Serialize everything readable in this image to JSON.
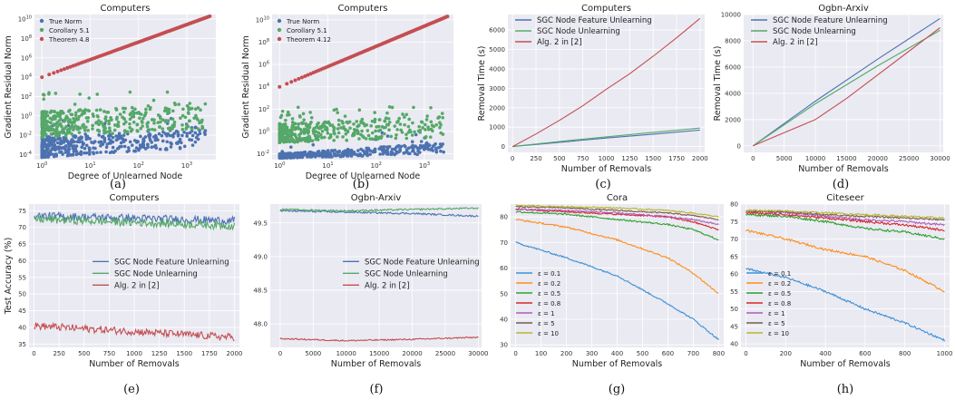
{
  "colors": {
    "blue": "#4c72b0",
    "green": "#55a868",
    "red": "#c44e52",
    "orange": "#ff8c1a",
    "tblue": "#3d8fd6",
    "tgreen": "#2ca02c",
    "tred": "#d62728",
    "purple": "#b05ab8",
    "brown": "#7a5a4a",
    "olive": "#b8b82c"
  },
  "chart_data": [
    {
      "id": "a",
      "type": "scatter",
      "title": "Computers",
      "caption": "(a)",
      "xlabel": "Degree of Unlearned Node",
      "ylabel": "Gradient Residual Norm",
      "xscale": "log",
      "yscale": "log",
      "xlim": [
        0.7,
        4000
      ],
      "ylim": [
        3e-05,
        30000000000
      ],
      "xticks": [
        {
          "v": 1,
          "b": "10",
          "e": "0"
        },
        {
          "v": 10,
          "b": "10",
          "e": "1"
        },
        {
          "v": 100,
          "b": "10",
          "e": "2"
        },
        {
          "v": 1000,
          "b": "10",
          "e": "3"
        }
      ],
      "yticks": [
        {
          "v": 0.0001,
          "b": "10",
          "e": "-4"
        },
        {
          "v": 0.01,
          "b": "10",
          "e": "-2"
        },
        {
          "v": 1,
          "b": "10",
          "e": "0"
        },
        {
          "v": 100,
          "b": "10",
          "e": "2"
        },
        {
          "v": 10000,
          "b": "10",
          "e": "4"
        },
        {
          "v": 1000000,
          "b": "10",
          "e": "6"
        },
        {
          "v": 100000000,
          "b": "10",
          "e": "8"
        },
        {
          "v": 10000000000,
          "b": "10",
          "e": "10"
        }
      ],
      "legend_pos": "top-left",
      "series": [
        {
          "name": "True Norm",
          "color": "blue",
          "low": [
            5e-05,
            0.005
          ],
          "high": [
            0.0006,
            0.1
          ],
          "upper": [
            0.004,
            1
          ]
        },
        {
          "name": "Corollary 5.1",
          "color": "green",
          "low": [
            0.006,
            3
          ],
          "high": [
            0.05,
            15
          ],
          "upper": [
            20,
            300
          ]
        },
        {
          "name": "Theorem 4.8",
          "color": "red",
          "line": [
            [
              1,
              10000
            ],
            [
              3000,
              20000000000
            ]
          ]
        }
      ]
    },
    {
      "id": "b",
      "type": "scatter",
      "title": "Computers",
      "caption": "(b)",
      "xlabel": "Degree of Unlearned Node",
      "ylabel": "Gradient Residual Norm",
      "xscale": "log",
      "yscale": "log",
      "xlim": [
        0.7,
        4000
      ],
      "ylim": [
        0.003,
        30000000000
      ],
      "xticks": [
        {
          "v": 1,
          "b": "10",
          "e": "0"
        },
        {
          "v": 10,
          "b": "10",
          "e": "1"
        },
        {
          "v": 100,
          "b": "10",
          "e": "2"
        },
        {
          "v": 1000,
          "b": "10",
          "e": "3"
        }
      ],
      "yticks": [
        {
          "v": 0.01,
          "b": "10",
          "e": "-2"
        },
        {
          "v": 1,
          "b": "10",
          "e": "0"
        },
        {
          "v": 100,
          "b": "10",
          "e": "2"
        },
        {
          "v": 10000,
          "b": "10",
          "e": "4"
        },
        {
          "v": 1000000,
          "b": "10",
          "e": "6"
        },
        {
          "v": 100000000,
          "b": "10",
          "e": "8"
        },
        {
          "v": 10000000000,
          "b": "10",
          "e": "10"
        }
      ],
      "legend_pos": "top-left",
      "series": [
        {
          "name": "True Norm",
          "color": "blue",
          "low": [
            0.004,
            0.01
          ],
          "high": [
            0.01,
            0.1
          ],
          "upper": [
            0.01,
            1
          ]
        },
        {
          "name": "Corollary 5.1",
          "color": "green",
          "low": [
            0.1,
            5
          ],
          "high": [
            0.3,
            30
          ],
          "upper": [
            5,
            200
          ]
        },
        {
          "name": "Theorem 4.12",
          "color": "red",
          "line": [
            [
              1,
              10000
            ],
            [
              3000,
              20000000000
            ]
          ]
        }
      ]
    },
    {
      "id": "c",
      "type": "line",
      "title": "Computers",
      "caption": "(c)",
      "xlabel": "Number of Removals",
      "ylabel": "Removal Time (s)",
      "xlim": [
        -50,
        2050
      ],
      "ylim": [
        -300,
        6800
      ],
      "xticks": [
        0,
        250,
        500,
        750,
        1000,
        1250,
        1500,
        1750,
        2000
      ],
      "yticks": [
        0,
        1000,
        2000,
        3000,
        4000,
        5000,
        6000
      ],
      "legend_pos": "top-left",
      "series": [
        {
          "name": "SGC Node Feature Unlearning",
          "color": "blue",
          "x": [
            0,
            500,
            1000,
            1500,
            2000
          ],
          "y": [
            0,
            220,
            440,
            640,
            850
          ]
        },
        {
          "name": "SGC Node Unlearning",
          "color": "green",
          "x": [
            0,
            500,
            1000,
            1500,
            2000
          ],
          "y": [
            0,
            260,
            500,
            730,
            950
          ]
        },
        {
          "name": "Alg. 2 in [2]",
          "color": "red",
          "x": [
            0,
            250,
            500,
            750,
            1000,
            1250,
            1500,
            1750,
            2000
          ],
          "y": [
            0,
            650,
            1350,
            2100,
            2950,
            3750,
            4650,
            5600,
            6600
          ]
        }
      ]
    },
    {
      "id": "d",
      "type": "line",
      "title": "Ogbn-Arxiv",
      "caption": "(d)",
      "xlabel": "Number of Removals",
      "ylabel": "Removal Time (s)",
      "xlim": [
        -1500,
        30500
      ],
      "ylim": [
        -500,
        10000
      ],
      "xticks": [
        0,
        5000,
        10000,
        15000,
        20000,
        25000,
        30000
      ],
      "yticks": [
        0,
        2000,
        4000,
        6000,
        8000,
        10000
      ],
      "legend_pos": "top-left",
      "series": [
        {
          "name": "SGC Node Feature Unlearning",
          "color": "blue",
          "x": [
            0,
            10000,
            20000,
            30000
          ],
          "y": [
            0,
            3400,
            6600,
            9700
          ]
        },
        {
          "name": "SGC Node Unlearning",
          "color": "green",
          "x": [
            0,
            10000,
            20000,
            30000
          ],
          "y": [
            0,
            3200,
            6100,
            8800
          ]
        },
        {
          "name": "Alg. 2 in [2]",
          "color": "red",
          "x": [
            0,
            5000,
            10000,
            15000,
            20000,
            25000,
            30000
          ],
          "y": [
            0,
            1000,
            2000,
            3600,
            5400,
            7200,
            9000
          ]
        }
      ]
    },
    {
      "id": "e",
      "type": "line",
      "title": "Computers",
      "caption": "(e)",
      "xlabel": "Number of Removals",
      "ylabel": "Test Accuracy (%)",
      "xlim": [
        -50,
        2050
      ],
      "ylim": [
        34,
        77
      ],
      "xticks": [
        0,
        250,
        500,
        750,
        1000,
        1250,
        1500,
        1750,
        2000
      ],
      "yticks": [
        35,
        40,
        45,
        50,
        55,
        60,
        65,
        70,
        75
      ],
      "legend_pos": "center-right",
      "series": [
        {
          "name": "SGC Node Feature Unlearning",
          "color": "blue",
          "x": [
            0,
            2000
          ],
          "y": [
            73.5,
            72
          ],
          "noise": 1.2
        },
        {
          "name": "SGC Node Unlearning",
          "color": "green",
          "x": [
            0,
            2000
          ],
          "y": [
            72.5,
            70.5
          ],
          "noise": 1.2
        },
        {
          "name": "Alg. 2 in [2]",
          "color": "red",
          "x": [
            0,
            2000
          ],
          "y": [
            40.5,
            37
          ],
          "noise": 1.1
        }
      ]
    },
    {
      "id": "f",
      "type": "line",
      "title": "Ogbn-Arxiv",
      "caption": "(f)",
      "xlabel": "Number of Removals",
      "ylabel": "",
      "xlim": [
        -1500,
        30500
      ],
      "ylim": [
        47.65,
        49.78
      ],
      "xticks": [
        0,
        5000,
        10000,
        15000,
        20000,
        25000,
        30000
      ],
      "yticks": [
        48.0,
        48.5,
        49.0,
        49.5
      ],
      "legend_pos": "center-right",
      "series": [
        {
          "name": "SGC Node Feature Unlearning",
          "color": "blue",
          "x": [
            0,
            10000,
            20000,
            30000
          ],
          "y": [
            49.68,
            49.66,
            49.64,
            49.6
          ],
          "noise": 0.012
        },
        {
          "name": "SGC Node Unlearning",
          "color": "green",
          "x": [
            0,
            10000,
            20000,
            30000
          ],
          "y": [
            49.7,
            49.68,
            49.7,
            49.72
          ],
          "noise": 0.012
        },
        {
          "name": "Alg. 2 in [2]",
          "color": "red",
          "x": [
            0,
            10000,
            20000,
            30000
          ],
          "y": [
            47.78,
            47.75,
            47.77,
            47.8
          ],
          "noise": 0.01
        }
      ]
    },
    {
      "id": "g",
      "type": "line",
      "title": "Cora",
      "caption": "(g)",
      "xlabel": "Number of Removals",
      "ylabel": "",
      "xlim": [
        -20,
        820
      ],
      "ylim": [
        29,
        85
      ],
      "xticks": [
        0,
        100,
        200,
        300,
        400,
        500,
        600,
        700,
        800
      ],
      "yticks": [
        30,
        40,
        50,
        60,
        70,
        80
      ],
      "legend_pos": "bottom-left",
      "series": [
        {
          "name": "ε = 0.1",
          "color": "tblue",
          "x": [
            0,
            200,
            400,
            600,
            700,
            800
          ],
          "y": [
            70,
            64,
            57,
            46,
            40,
            32
          ],
          "noise": 0.3
        },
        {
          "name": "ε = 0.2",
          "color": "orange",
          "x": [
            0,
            200,
            400,
            600,
            700,
            800
          ],
          "y": [
            79,
            76,
            71,
            64,
            58,
            50
          ],
          "noise": 0.3
        },
        {
          "name": "ε = 0.5",
          "color": "tgreen",
          "x": [
            0,
            200,
            400,
            600,
            700,
            800
          ],
          "y": [
            82,
            81,
            79,
            77,
            75,
            71
          ],
          "noise": 0.3
        },
        {
          "name": "ε = 0.8",
          "color": "tred",
          "x": [
            0,
            200,
            400,
            600,
            700,
            800
          ],
          "y": [
            83,
            82,
            81,
            80,
            78,
            75
          ],
          "noise": 0.3
        },
        {
          "name": "ε = 1",
          "color": "purple",
          "x": [
            0,
            200,
            400,
            600,
            700,
            800
          ],
          "y": [
            83,
            82.5,
            81.5,
            80,
            79,
            77
          ],
          "noise": 0.3
        },
        {
          "name": "ε = 5",
          "color": "brown",
          "x": [
            0,
            200,
            400,
            600,
            700,
            800
          ],
          "y": [
            84,
            83.5,
            82.5,
            81.5,
            80.5,
            79
          ],
          "noise": 0.25
        },
        {
          "name": "ε = 10",
          "color": "olive",
          "x": [
            0,
            200,
            400,
            600,
            700,
            800
          ],
          "y": [
            84.5,
            84,
            83.5,
            82.5,
            81.5,
            80
          ],
          "noise": 0.25
        }
      ]
    },
    {
      "id": "h",
      "type": "line",
      "title": "Citeseer",
      "caption": "(h)",
      "xlabel": "Number of Removals",
      "ylabel": "",
      "xlim": [
        -25,
        1025
      ],
      "ylim": [
        39,
        80
      ],
      "xticks": [
        0,
        200,
        400,
        600,
        800,
        1000
      ],
      "yticks": [
        40,
        45,
        50,
        55,
        60,
        65,
        70,
        75,
        80
      ],
      "legend_pos": "bottom-left",
      "series": [
        {
          "name": "ε = 0.1",
          "color": "tblue",
          "x": [
            0,
            200,
            400,
            600,
            800,
            1000
          ],
          "y": [
            61.5,
            59,
            55,
            50,
            46,
            41
          ],
          "noise": 0.3
        },
        {
          "name": "ε = 0.2",
          "color": "orange",
          "x": [
            0,
            200,
            400,
            600,
            800,
            1000
          ],
          "y": [
            72.5,
            70,
            67,
            65,
            61,
            55
          ],
          "noise": 0.3
        },
        {
          "name": "ε = 0.5",
          "color": "tgreen",
          "x": [
            0,
            200,
            400,
            600,
            800,
            1000
          ],
          "y": [
            77,
            76.5,
            75,
            73,
            72,
            70
          ],
          "noise": 0.3
        },
        {
          "name": "ε = 0.8",
          "color": "tred",
          "x": [
            0,
            200,
            400,
            600,
            800,
            1000
          ],
          "y": [
            77.5,
            77,
            76,
            75,
            74,
            72.5
          ],
          "noise": 0.3
        },
        {
          "name": "ε = 1",
          "color": "purple",
          "x": [
            0,
            200,
            400,
            600,
            800,
            1000
          ],
          "y": [
            78,
            77.5,
            76.5,
            75.5,
            75,
            74
          ],
          "noise": 0.3
        },
        {
          "name": "ε = 5",
          "color": "brown",
          "x": [
            0,
            200,
            400,
            600,
            800,
            1000
          ],
          "y": [
            78,
            77.8,
            77,
            76.5,
            76,
            75.5
          ],
          "noise": 0.25
        },
        {
          "name": "ε = 10",
          "color": "olive",
          "x": [
            0,
            200,
            400,
            600,
            800,
            1000
          ],
          "y": [
            78.2,
            78,
            77.5,
            77,
            76.5,
            76
          ],
          "noise": 0.25
        }
      ]
    }
  ]
}
